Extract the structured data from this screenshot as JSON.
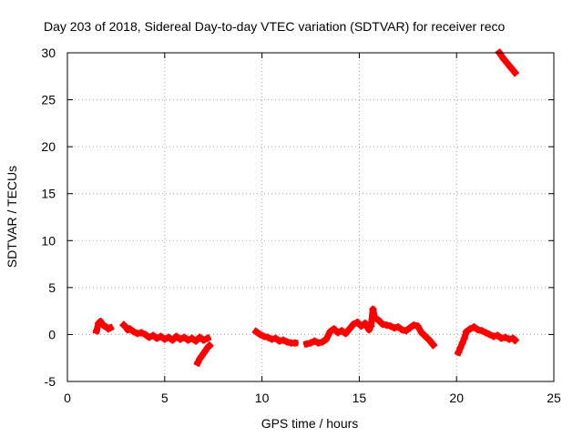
{
  "chart_data": {
    "type": "scatter",
    "title": "Day 203 of 2018, Sidereal Day-to-day VTEC variation (SDTVAR) for receiver reco",
    "xlabel": "GPS time / hours",
    "ylabel": "SDTVAR / TECUs",
    "xlim": [
      0,
      25
    ],
    "ylim": [
      -5,
      30
    ],
    "xticks": [
      0,
      5,
      10,
      15,
      20,
      25
    ],
    "yticks": [
      -5,
      0,
      5,
      10,
      15,
      20,
      25,
      30
    ],
    "grid": true,
    "series_color": "#ff0000",
    "series": [
      {
        "name": "SDTVAR",
        "segments": [
          [
            [
              1.5,
              0.4
            ],
            [
              1.6,
              1.2
            ],
            [
              1.7,
              1.4
            ],
            [
              1.8,
              1.1
            ],
            [
              1.9,
              0.9
            ],
            [
              2.0,
              0.8
            ],
            [
              2.1,
              0.6
            ],
            [
              2.2,
              0.7
            ]
          ],
          [
            [
              2.9,
              1.0
            ],
            [
              3.0,
              0.8
            ],
            [
              3.1,
              0.5
            ],
            [
              3.2,
              0.6
            ],
            [
              3.4,
              0.3
            ],
            [
              3.6,
              0.1
            ],
            [
              3.8,
              0.2
            ],
            [
              4.0,
              0.0
            ],
            [
              4.2,
              -0.3
            ],
            [
              4.4,
              -0.1
            ],
            [
              4.6,
              -0.4
            ],
            [
              4.8,
              -0.2
            ],
            [
              5.0,
              -0.5
            ],
            [
              5.2,
              -0.3
            ],
            [
              5.4,
              -0.6
            ],
            [
              5.6,
              -0.2
            ],
            [
              5.8,
              -0.5
            ],
            [
              6.0,
              -0.3
            ],
            [
              6.2,
              -0.6
            ],
            [
              6.4,
              -0.4
            ],
            [
              6.6,
              -0.7
            ],
            [
              6.8,
              -0.3
            ],
            [
              7.0,
              -0.6
            ],
            [
              7.2,
              -0.4
            ]
          ],
          [
            [
              6.7,
              -3.0
            ],
            [
              6.8,
              -2.6
            ],
            [
              6.9,
              -2.3
            ],
            [
              7.0,
              -2.0
            ],
            [
              7.1,
              -1.7
            ],
            [
              7.2,
              -1.4
            ],
            [
              7.3,
              -1.2
            ]
          ],
          [
            [
              9.7,
              0.3
            ],
            [
              9.9,
              0.0
            ],
            [
              10.1,
              -0.2
            ],
            [
              10.3,
              -0.3
            ],
            [
              10.5,
              -0.5
            ],
            [
              10.7,
              -0.4
            ],
            [
              10.9,
              -0.7
            ],
            [
              11.1,
              -0.6
            ],
            [
              11.3,
              -0.8
            ],
            [
              11.5,
              -0.9
            ],
            [
              11.7,
              -0.9
            ]
          ],
          [
            [
              12.3,
              -1.0
            ],
            [
              12.5,
              -0.9
            ],
            [
              12.7,
              -0.7
            ],
            [
              12.9,
              -0.9
            ],
            [
              13.1,
              -0.8
            ],
            [
              13.3,
              -0.5
            ],
            [
              13.5,
              0.3
            ],
            [
              13.7,
              0.6
            ],
            [
              13.9,
              0.2
            ],
            [
              14.1,
              0.4
            ],
            [
              14.3,
              0.1
            ],
            [
              14.5,
              0.6
            ],
            [
              14.7,
              1.1
            ],
            [
              14.9,
              1.3
            ],
            [
              15.1,
              0.9
            ],
            [
              15.3,
              1.2
            ],
            [
              15.5,
              0.5
            ],
            [
              15.6,
              0.9
            ],
            [
              15.7,
              2.7
            ],
            [
              15.8,
              1.8
            ],
            [
              16.0,
              1.5
            ],
            [
              16.2,
              1.1
            ],
            [
              16.4,
              1.0
            ],
            [
              16.6,
              0.9
            ],
            [
              16.8,
              0.7
            ],
            [
              17.0,
              0.8
            ],
            [
              17.2,
              0.5
            ],
            [
              17.4,
              0.4
            ],
            [
              17.6,
              0.7
            ],
            [
              17.8,
              1.0
            ],
            [
              18.0,
              0.9
            ],
            [
              18.2,
              0.2
            ],
            [
              18.4,
              -0.2
            ],
            [
              18.6,
              -0.6
            ],
            [
              18.8,
              -1.1
            ]
          ],
          [
            [
              20.1,
              -1.9
            ],
            [
              20.2,
              -1.4
            ],
            [
              20.3,
              -0.9
            ],
            [
              20.4,
              -0.4
            ],
            [
              20.5,
              0.3
            ],
            [
              20.7,
              0.6
            ],
            [
              20.9,
              0.8
            ],
            [
              21.1,
              0.5
            ],
            [
              21.3,
              0.4
            ],
            [
              21.5,
              0.2
            ],
            [
              21.7,
              0.0
            ],
            [
              21.9,
              -0.2
            ],
            [
              22.1,
              -0.1
            ],
            [
              22.3,
              -0.4
            ],
            [
              22.5,
              -0.3
            ],
            [
              22.7,
              -0.5
            ],
            [
              22.9,
              -0.4
            ],
            [
              23.0,
              -0.6
            ]
          ],
          [
            [
              22.2,
              30.0
            ],
            [
              22.4,
              29.4
            ],
            [
              22.6,
              28.9
            ],
            [
              22.8,
              28.4
            ],
            [
              23.0,
              27.9
            ]
          ]
        ]
      }
    ]
  }
}
